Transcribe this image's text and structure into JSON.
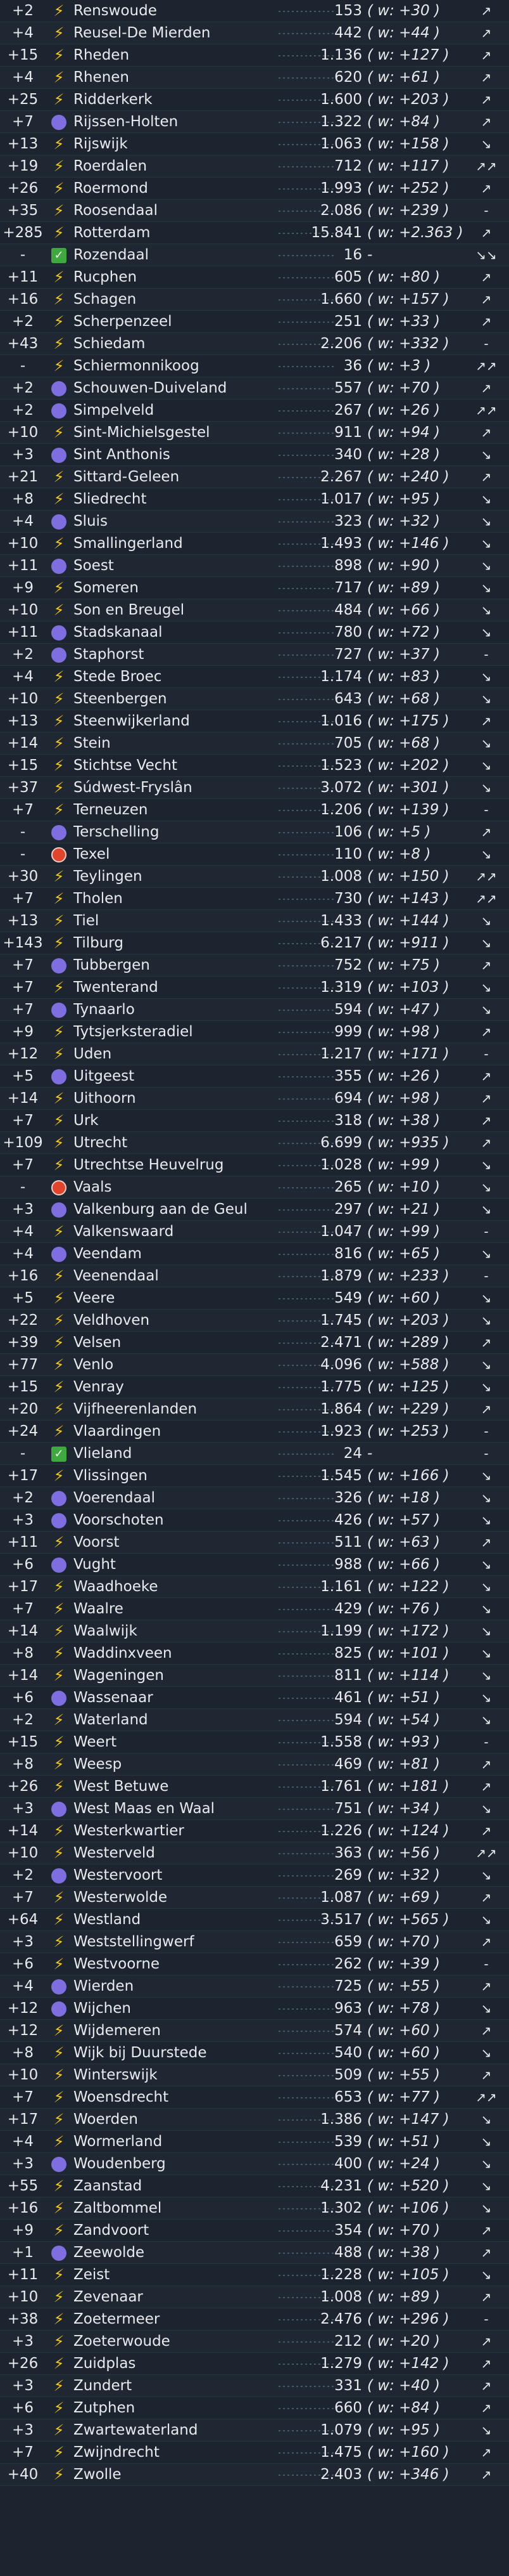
{
  "rows": [
    {
      "change": "+2",
      "icon": "bolt-icon",
      "name": "Renswoude",
      "count": "153",
      "weekly": "( w: +30 )",
      "trend": "↗"
    },
    {
      "change": "+4",
      "icon": "bolt-icon",
      "name": "Reusel-De Mierden",
      "count": "442",
      "weekly": "( w: +44 )",
      "trend": "↗"
    },
    {
      "change": "+15",
      "icon": "bolt-icon",
      "name": "Rheden",
      "count": "1.136",
      "weekly": "( w: +127 )",
      "trend": "↗"
    },
    {
      "change": "+4",
      "icon": "bolt-icon",
      "name": "Rhenen",
      "count": "620",
      "weekly": "( w: +61 )",
      "trend": "↗"
    },
    {
      "change": "+25",
      "icon": "bolt-icon",
      "name": "Ridderkerk",
      "count": "1.600",
      "weekly": "( w: +203 )",
      "trend": "↗"
    },
    {
      "change": "+7",
      "icon": "purple-dot-icon",
      "name": "Rijssen-Holten",
      "count": "1.322",
      "weekly": "( w: +84 )",
      "trend": "↗"
    },
    {
      "change": "+13",
      "icon": "bolt-icon",
      "name": "Rijswijk",
      "count": "1.063",
      "weekly": "( w: +158 )",
      "trend": "↘"
    },
    {
      "change": "+19",
      "icon": "bolt-icon",
      "name": "Roerdalen",
      "count": "712",
      "weekly": "( w: +117 )",
      "trend": "↗↗"
    },
    {
      "change": "+26",
      "icon": "bolt-icon",
      "name": "Roermond",
      "count": "1.993",
      "weekly": "( w: +252 )",
      "trend": "↗"
    },
    {
      "change": "+35",
      "icon": "bolt-icon",
      "name": "Roosendaal",
      "count": "2.086",
      "weekly": "( w: +239 )",
      "trend": "-"
    },
    {
      "change": "+285",
      "icon": "bolt-icon",
      "name": "Rotterdam",
      "count": "15.841",
      "weekly": "( w: +2.363 )",
      "trend": "↗"
    },
    {
      "change": "-",
      "icon": "check-icon",
      "name": "Rozendaal",
      "count": "16",
      "weekly": "-",
      "trend": "↘↘"
    },
    {
      "change": "+11",
      "icon": "bolt-icon",
      "name": "Rucphen",
      "count": "605",
      "weekly": "( w: +80 )",
      "trend": "↗"
    },
    {
      "change": "+16",
      "icon": "bolt-icon",
      "name": "Schagen",
      "count": "1.660",
      "weekly": "( w: +157 )",
      "trend": "↗"
    },
    {
      "change": "+2",
      "icon": "bolt-icon",
      "name": "Scherpenzeel",
      "count": "251",
      "weekly": "( w: +33 )",
      "trend": "↗"
    },
    {
      "change": "+43",
      "icon": "bolt-icon",
      "name": "Schiedam",
      "count": "2.206",
      "weekly": "( w: +332 )",
      "trend": "-"
    },
    {
      "change": "-",
      "icon": "bolt-icon",
      "name": "Schiermonnikoog",
      "count": "36",
      "weekly": "( w: +3 )",
      "trend": "↗↗"
    },
    {
      "change": "+2",
      "icon": "purple-dot-icon",
      "name": "Schouwen-Duiveland",
      "count": "557",
      "weekly": "( w: +70 )",
      "trend": "↗"
    },
    {
      "change": "+2",
      "icon": "purple-dot-icon",
      "name": "Simpelveld",
      "count": "267",
      "weekly": "( w: +26 )",
      "trend": "↗↗"
    },
    {
      "change": "+10",
      "icon": "bolt-icon",
      "name": "Sint-Michielsgestel",
      "count": "911",
      "weekly": "( w: +94 )",
      "trend": "↗"
    },
    {
      "change": "+3",
      "icon": "purple-dot-icon",
      "name": "Sint Anthonis",
      "count": "340",
      "weekly": "( w: +28 )",
      "trend": "↘"
    },
    {
      "change": "+21",
      "icon": "bolt-icon",
      "name": "Sittard-Geleen",
      "count": "2.267",
      "weekly": "( w: +240 )",
      "trend": "↗"
    },
    {
      "change": "+8",
      "icon": "bolt-icon",
      "name": "Sliedrecht",
      "count": "1.017",
      "weekly": "( w: +95 )",
      "trend": "↘"
    },
    {
      "change": "+4",
      "icon": "purple-dot-icon",
      "name": "Sluis",
      "count": "323",
      "weekly": "( w: +32 )",
      "trend": "↘"
    },
    {
      "change": "+10",
      "icon": "bolt-icon",
      "name": "Smallingerland",
      "count": "1.493",
      "weekly": "( w: +146 )",
      "trend": "↘"
    },
    {
      "change": "+11",
      "icon": "purple-dot-icon",
      "name": "Soest",
      "count": "898",
      "weekly": "( w: +90 )",
      "trend": "↘"
    },
    {
      "change": "+9",
      "icon": "bolt-icon",
      "name": "Someren",
      "count": "717",
      "weekly": "( w: +89 )",
      "trend": "↘"
    },
    {
      "change": "+10",
      "icon": "bolt-icon",
      "name": "Son en Breugel",
      "count": "484",
      "weekly": "( w: +66 )",
      "trend": "↘"
    },
    {
      "change": "+11",
      "icon": "purple-dot-icon",
      "name": "Stadskanaal",
      "count": "780",
      "weekly": "( w: +72 )",
      "trend": "↘"
    },
    {
      "change": "+2",
      "icon": "purple-dot-icon",
      "name": "Staphorst",
      "count": "727",
      "weekly": "( w: +37 )",
      "trend": "-"
    },
    {
      "change": "+4",
      "icon": "bolt-icon",
      "name": "Stede Broec",
      "count": "1.174",
      "weekly": "( w: +83 )",
      "trend": "↘"
    },
    {
      "change": "+10",
      "icon": "bolt-icon",
      "name": "Steenbergen",
      "count": "643",
      "weekly": "( w: +68 )",
      "trend": "↘"
    },
    {
      "change": "+13",
      "icon": "bolt-icon",
      "name": "Steenwijkerland",
      "count": "1.016",
      "weekly": "( w: +175 )",
      "trend": "↗"
    },
    {
      "change": "+14",
      "icon": "bolt-icon",
      "name": "Stein",
      "count": "705",
      "weekly": "( w: +68 )",
      "trend": "↘"
    },
    {
      "change": "+15",
      "icon": "bolt-icon",
      "name": "Stichtse Vecht",
      "count": "1.523",
      "weekly": "( w: +202 )",
      "trend": "↘"
    },
    {
      "change": "+37",
      "icon": "bolt-icon",
      "name": "Súdwest-Fryslân",
      "count": "3.072",
      "weekly": "( w: +301 )",
      "trend": "↘"
    },
    {
      "change": "+7",
      "icon": "bolt-icon",
      "name": "Terneuzen",
      "count": "1.206",
      "weekly": "( w: +139 )",
      "trend": "-"
    },
    {
      "change": "-",
      "icon": "purple-dot-icon",
      "name": "Terschelling",
      "count": "106",
      "weekly": "( w: +5 )",
      "trend": "↗"
    },
    {
      "change": "-",
      "icon": "red-dot-icon",
      "name": "Texel",
      "count": "110",
      "weekly": "( w: +8 )",
      "trend": "↘"
    },
    {
      "change": "+30",
      "icon": "bolt-icon",
      "name": "Teylingen",
      "count": "1.008",
      "weekly": "( w: +150 )",
      "trend": "↗↗"
    },
    {
      "change": "+7",
      "icon": "bolt-icon",
      "name": "Tholen",
      "count": "730",
      "weekly": "( w: +143 )",
      "trend": "↗↗"
    },
    {
      "change": "+13",
      "icon": "bolt-icon",
      "name": "Tiel",
      "count": "1.433",
      "weekly": "( w: +144 )",
      "trend": "↘"
    },
    {
      "change": "+143",
      "icon": "bolt-icon",
      "name": "Tilburg",
      "count": "6.217",
      "weekly": "( w: +911 )",
      "trend": "↘"
    },
    {
      "change": "+7",
      "icon": "purple-dot-icon",
      "name": "Tubbergen",
      "count": "752",
      "weekly": "( w: +75 )",
      "trend": "↗"
    },
    {
      "change": "+7",
      "icon": "bolt-icon",
      "name": "Twenterand",
      "count": "1.319",
      "weekly": "( w: +103 )",
      "trend": "↘"
    },
    {
      "change": "+7",
      "icon": "purple-dot-icon",
      "name": "Tynaarlo",
      "count": "594",
      "weekly": "( w: +47 )",
      "trend": "↘"
    },
    {
      "change": "+9",
      "icon": "bolt-icon",
      "name": "Tytsjerksteradiel",
      "count": "999",
      "weekly": "( w: +98 )",
      "trend": "↗"
    },
    {
      "change": "+12",
      "icon": "bolt-icon",
      "name": "Uden",
      "count": "1.217",
      "weekly": "( w: +171 )",
      "trend": "-"
    },
    {
      "change": "+5",
      "icon": "purple-dot-icon",
      "name": "Uitgeest",
      "count": "355",
      "weekly": "( w: +26 )",
      "trend": "↗"
    },
    {
      "change": "+14",
      "icon": "bolt-icon",
      "name": "Uithoorn",
      "count": "694",
      "weekly": "( w: +98 )",
      "trend": "↗"
    },
    {
      "change": "+7",
      "icon": "bolt-icon",
      "name": "Urk",
      "count": "318",
      "weekly": "( w: +38 )",
      "trend": "↗"
    },
    {
      "change": "+109",
      "icon": "bolt-icon",
      "name": "Utrecht",
      "count": "6.699",
      "weekly": "( w: +935 )",
      "trend": "↗"
    },
    {
      "change": "+7",
      "icon": "bolt-icon",
      "name": "Utrechtse Heuvelrug",
      "count": "1.028",
      "weekly": "( w: +99 )",
      "trend": "↘"
    },
    {
      "change": "-",
      "icon": "red-dot-icon",
      "name": "Vaals",
      "count": "265",
      "weekly": "( w: +10 )",
      "trend": "↘"
    },
    {
      "change": "+3",
      "icon": "purple-dot-icon",
      "name": "Valkenburg aan de Geul",
      "count": "297",
      "weekly": "( w: +21 )",
      "trend": "↘"
    },
    {
      "change": "+4",
      "icon": "bolt-icon",
      "name": "Valkenswaard",
      "count": "1.047",
      "weekly": "( w: +99 )",
      "trend": "-"
    },
    {
      "change": "+4",
      "icon": "purple-dot-icon",
      "name": "Veendam",
      "count": "816",
      "weekly": "( w: +65 )",
      "trend": "↘"
    },
    {
      "change": "+16",
      "icon": "bolt-icon",
      "name": "Veenendaal",
      "count": "1.879",
      "weekly": "( w: +233 )",
      "trend": "-"
    },
    {
      "change": "+5",
      "icon": "bolt-icon",
      "name": "Veere",
      "count": "549",
      "weekly": "( w: +60 )",
      "trend": "↘"
    },
    {
      "change": "+22",
      "icon": "bolt-icon",
      "name": "Veldhoven",
      "count": "1.745",
      "weekly": "( w: +203 )",
      "trend": "↘"
    },
    {
      "change": "+39",
      "icon": "bolt-icon",
      "name": "Velsen",
      "count": "2.471",
      "weekly": "( w: +289 )",
      "trend": "↗"
    },
    {
      "change": "+77",
      "icon": "bolt-icon",
      "name": "Venlo",
      "count": "4.096",
      "weekly": "( w: +588 )",
      "trend": "↘"
    },
    {
      "change": "+15",
      "icon": "bolt-icon",
      "name": "Venray",
      "count": "1.775",
      "weekly": "( w: +125 )",
      "trend": "↘"
    },
    {
      "change": "+20",
      "icon": "bolt-icon",
      "name": "Vijfheerenlanden",
      "count": "1.864",
      "weekly": "( w: +229 )",
      "trend": "↗"
    },
    {
      "change": "+24",
      "icon": "bolt-icon",
      "name": "Vlaardingen",
      "count": "1.923",
      "weekly": "( w: +253 )",
      "trend": "-"
    },
    {
      "change": "-",
      "icon": "check-icon",
      "name": "Vlieland",
      "count": "24",
      "weekly": "-",
      "trend": "-"
    },
    {
      "change": "+17",
      "icon": "bolt-icon",
      "name": "Vlissingen",
      "count": "1.545",
      "weekly": "( w: +166 )",
      "trend": "↘"
    },
    {
      "change": "+2",
      "icon": "purple-dot-icon",
      "name": "Voerendaal",
      "count": "326",
      "weekly": "( w: +18 )",
      "trend": "↘"
    },
    {
      "change": "+3",
      "icon": "purple-dot-icon",
      "name": "Voorschoten",
      "count": "426",
      "weekly": "( w: +57 )",
      "trend": "↘"
    },
    {
      "change": "+11",
      "icon": "bolt-icon",
      "name": "Voorst",
      "count": "511",
      "weekly": "( w: +63 )",
      "trend": "↗"
    },
    {
      "change": "+6",
      "icon": "purple-dot-icon",
      "name": "Vught",
      "count": "988",
      "weekly": "( w: +66 )",
      "trend": "↘"
    },
    {
      "change": "+17",
      "icon": "bolt-icon",
      "name": "Waadhoeke",
      "count": "1.161",
      "weekly": "( w: +122 )",
      "trend": "↘"
    },
    {
      "change": "+7",
      "icon": "bolt-icon",
      "name": "Waalre",
      "count": "429",
      "weekly": "( w: +76 )",
      "trend": "↘"
    },
    {
      "change": "+14",
      "icon": "bolt-icon",
      "name": "Waalwijk",
      "count": "1.199",
      "weekly": "( w: +172 )",
      "trend": "↘"
    },
    {
      "change": "+8",
      "icon": "bolt-icon",
      "name": "Waddinxveen",
      "count": "825",
      "weekly": "( w: +101 )",
      "trend": "↘"
    },
    {
      "change": "+14",
      "icon": "bolt-icon",
      "name": "Wageningen",
      "count": "811",
      "weekly": "( w: +114 )",
      "trend": "↘"
    },
    {
      "change": "+6",
      "icon": "purple-dot-icon",
      "name": "Wassenaar",
      "count": "461",
      "weekly": "( w: +51 )",
      "trend": "↘"
    },
    {
      "change": "+2",
      "icon": "bolt-icon",
      "name": "Waterland",
      "count": "594",
      "weekly": "( w: +54 )",
      "trend": "↘"
    },
    {
      "change": "+15",
      "icon": "bolt-icon",
      "name": "Weert",
      "count": "1.558",
      "weekly": "( w: +93 )",
      "trend": "-"
    },
    {
      "change": "+8",
      "icon": "bolt-icon",
      "name": "Weesp",
      "count": "469",
      "weekly": "( w: +81 )",
      "trend": "↗"
    },
    {
      "change": "+26",
      "icon": "bolt-icon",
      "name": "West Betuwe",
      "count": "1.761",
      "weekly": "( w: +181 )",
      "trend": "↗"
    },
    {
      "change": "+3",
      "icon": "purple-dot-icon",
      "name": "West Maas en Waal",
      "count": "751",
      "weekly": "( w: +34 )",
      "trend": "↘"
    },
    {
      "change": "+14",
      "icon": "bolt-icon",
      "name": "Westerkwartier",
      "count": "1.226",
      "weekly": "( w: +124 )",
      "trend": "↗"
    },
    {
      "change": "+10",
      "icon": "bolt-icon",
      "name": "Westerveld",
      "count": "363",
      "weekly": "( w: +56 )",
      "trend": "↗↗"
    },
    {
      "change": "+2",
      "icon": "purple-dot-icon",
      "name": "Westervoort",
      "count": "269",
      "weekly": "( w: +32 )",
      "trend": "↘"
    },
    {
      "change": "+7",
      "icon": "bolt-icon",
      "name": "Westerwolde",
      "count": "1.087",
      "weekly": "( w: +69 )",
      "trend": "↗"
    },
    {
      "change": "+64",
      "icon": "bolt-icon",
      "name": "Westland",
      "count": "3.517",
      "weekly": "( w: +565 )",
      "trend": "↘"
    },
    {
      "change": "+3",
      "icon": "bolt-icon",
      "name": "Weststellingwerf",
      "count": "659",
      "weekly": "( w: +70 )",
      "trend": "↗"
    },
    {
      "change": "+6",
      "icon": "bolt-icon",
      "name": "Westvoorne",
      "count": "262",
      "weekly": "( w: +39 )",
      "trend": "-"
    },
    {
      "change": "+4",
      "icon": "purple-dot-icon",
      "name": "Wierden",
      "count": "725",
      "weekly": "( w: +55 )",
      "trend": "↗"
    },
    {
      "change": "+12",
      "icon": "purple-dot-icon",
      "name": "Wijchen",
      "count": "963",
      "weekly": "( w: +78 )",
      "trend": "↘"
    },
    {
      "change": "+12",
      "icon": "bolt-icon",
      "name": "Wijdemeren",
      "count": "574",
      "weekly": "( w: +60 )",
      "trend": "↗"
    },
    {
      "change": "+8",
      "icon": "bolt-icon",
      "name": "Wijk bij Duurstede",
      "count": "540",
      "weekly": "( w: +60 )",
      "trend": "↘"
    },
    {
      "change": "+10",
      "icon": "bolt-icon",
      "name": "Winterswijk",
      "count": "509",
      "weekly": "( w: +55 )",
      "trend": "↗"
    },
    {
      "change": "+7",
      "icon": "bolt-icon",
      "name": "Woensdrecht",
      "count": "653",
      "weekly": "( w: +77 )",
      "trend": "↗↗"
    },
    {
      "change": "+17",
      "icon": "bolt-icon",
      "name": "Woerden",
      "count": "1.386",
      "weekly": "( w: +147 )",
      "trend": "↘"
    },
    {
      "change": "+4",
      "icon": "bolt-icon",
      "name": "Wormerland",
      "count": "539",
      "weekly": "( w: +51 )",
      "trend": "↘"
    },
    {
      "change": "+3",
      "icon": "purple-dot-icon",
      "name": "Woudenberg",
      "count": "400",
      "weekly": "( w: +24 )",
      "trend": "↘"
    },
    {
      "change": "+55",
      "icon": "bolt-icon",
      "name": "Zaanstad",
      "count": "4.231",
      "weekly": "( w: +520 )",
      "trend": "↘"
    },
    {
      "change": "+16",
      "icon": "bolt-icon",
      "name": "Zaltbommel",
      "count": "1.302",
      "weekly": "( w: +106 )",
      "trend": "↘"
    },
    {
      "change": "+9",
      "icon": "bolt-icon",
      "name": "Zandvoort",
      "count": "354",
      "weekly": "( w: +70 )",
      "trend": "↗"
    },
    {
      "change": "+1",
      "icon": "purple-dot-icon",
      "name": "Zeewolde",
      "count": "488",
      "weekly": "( w: +38 )",
      "trend": "↗"
    },
    {
      "change": "+11",
      "icon": "bolt-icon",
      "name": "Zeist",
      "count": "1.228",
      "weekly": "( w: +105 )",
      "trend": "↘"
    },
    {
      "change": "+10",
      "icon": "bolt-icon",
      "name": "Zevenaar",
      "count": "1.008",
      "weekly": "( w: +89 )",
      "trend": "↗"
    },
    {
      "change": "+38",
      "icon": "bolt-icon",
      "name": "Zoetermeer",
      "count": "2.476",
      "weekly": "( w: +296 )",
      "trend": "-"
    },
    {
      "change": "+3",
      "icon": "bolt-icon",
      "name": "Zoeterwoude",
      "count": "212",
      "weekly": "( w: +20 )",
      "trend": "↗"
    },
    {
      "change": "+26",
      "icon": "bolt-icon",
      "name": "Zuidplas",
      "count": "1.279",
      "weekly": "( w: +142 )",
      "trend": "↗"
    },
    {
      "change": "+3",
      "icon": "bolt-icon",
      "name": "Zundert",
      "count": "331",
      "weekly": "( w: +40 )",
      "trend": "↗"
    },
    {
      "change": "+6",
      "icon": "bolt-icon",
      "name": "Zutphen",
      "count": "660",
      "weekly": "( w: +84 )",
      "trend": "↗"
    },
    {
      "change": "+3",
      "icon": "bolt-icon",
      "name": "Zwartewaterland",
      "count": "1.079",
      "weekly": "( w: +95 )",
      "trend": "↘"
    },
    {
      "change": "+7",
      "icon": "bolt-icon",
      "name": "Zwijndrecht",
      "count": "1.475",
      "weekly": "( w: +160 )",
      "trend": "↗"
    },
    {
      "change": "+40",
      "icon": "bolt-icon",
      "name": "Zwolle",
      "count": "2.403",
      "weekly": "( w: +346 )",
      "trend": "↗"
    }
  ]
}
